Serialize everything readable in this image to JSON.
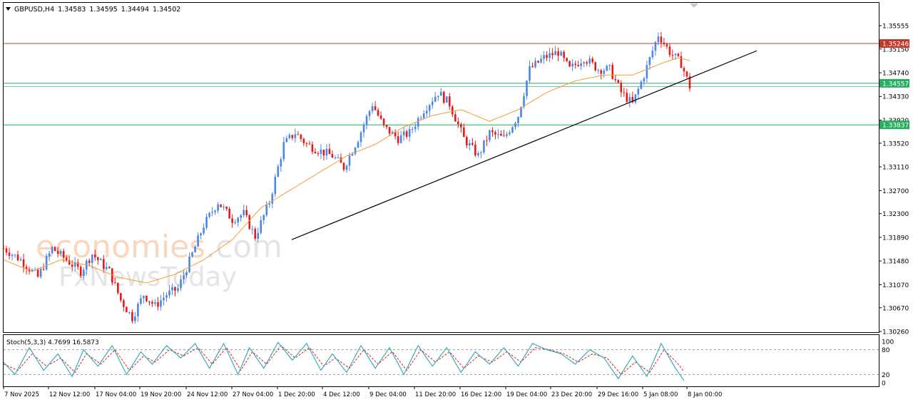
{
  "header": {
    "symbol_timeframe": "GBPUSD,H4",
    "open": "1.34583",
    "high": "1.34595",
    "low": "1.34494",
    "close": "1.34502"
  },
  "watermark": {
    "part1": "economies",
    "part2": ".com",
    "sub": "FxNewsToday"
  },
  "colors": {
    "bull": "#4a86e8",
    "bear": "#e61919",
    "ma": "#f0a030",
    "trendline": "#000000",
    "resistance": "#c0392b",
    "support": "#27ae60",
    "stoch_main": "#2aa7b8",
    "stoch_signal": "#e61919"
  },
  "chart_data": [
    {
      "type": "candlestick",
      "symbol": "GBPUSD",
      "timeframe": "H4",
      "ylim": [
        1.3026,
        1.3555
      ],
      "y_ticks": [
        "1.35555",
        "1.35150",
        "1.34740",
        "1.34330",
        "1.33920",
        "1.33520",
        "1.33110",
        "1.32700",
        "1.32300",
        "1.31890",
        "1.31480",
        "1.31070",
        "1.30670",
        "1.30260"
      ],
      "x_ticks": [
        "7 Nov 2025",
        "12 Nov 12:00",
        "17 Nov 04:00",
        "19 Nov 20:00",
        "24 Nov 12:00",
        "27 Nov 04:00",
        "1 Dec 20:00",
        "4 Dec 12:00",
        "9 Dec 04:00",
        "11 Dec 20:00",
        "16 Dec 12:00",
        "19 Dec 04:00",
        "23 Dec 20:00",
        "29 Dec 16:00",
        "5 Jan 08:00",
        "8 Jan 00:00"
      ],
      "close_path": [
        [
          0,
          1.317
        ],
        [
          6,
          1.315
        ],
        [
          12,
          1.312
        ],
        [
          17,
          1.317
        ],
        [
          22,
          1.315
        ],
        [
          27,
          1.313
        ],
        [
          31,
          1.316
        ],
        [
          37,
          1.313
        ],
        [
          41,
          1.308
        ],
        [
          45,
          1.305
        ],
        [
          49,
          1.309
        ],
        [
          53,
          1.307
        ],
        [
          57,
          1.309
        ],
        [
          61,
          1.31
        ],
        [
          66,
          1.316
        ],
        [
          70,
          1.321
        ],
        [
          75,
          1.325
        ],
        [
          80,
          1.322
        ],
        [
          84,
          1.323
        ],
        [
          88,
          1.319
        ],
        [
          93,
          1.325
        ],
        [
          98,
          1.335
        ],
        [
          102,
          1.337
        ],
        [
          106,
          1.335
        ],
        [
          110,
          1.334
        ],
        [
          115,
          1.333
        ],
        [
          119,
          1.331
        ],
        [
          124,
          1.336
        ],
        [
          129,
          1.342
        ],
        [
          133,
          1.338
        ],
        [
          138,
          1.336
        ],
        [
          142,
          1.337
        ],
        [
          147,
          1.341
        ],
        [
          152,
          1.344
        ],
        [
          156,
          1.342
        ],
        [
          161,
          1.336
        ],
        [
          166,
          1.333
        ],
        [
          170,
          1.337
        ],
        [
          175,
          1.336
        ],
        [
          180,
          1.34
        ],
        [
          184,
          1.348
        ],
        [
          189,
          1.35
        ],
        [
          194,
          1.351
        ],
        [
          198,
          1.348
        ],
        [
          203,
          1.35
        ],
        [
          208,
          1.348
        ],
        [
          212,
          1.348
        ],
        [
          216,
          1.344
        ],
        [
          220,
          1.342
        ],
        [
          224,
          1.347
        ],
        [
          229,
          1.354
        ],
        [
          233,
          1.351
        ],
        [
          237,
          1.349
        ],
        [
          240,
          1.345
        ]
      ],
      "ma_path": [
        [
          0,
          1.315
        ],
        [
          10,
          1.313
        ],
        [
          20,
          1.315
        ],
        [
          30,
          1.314
        ],
        [
          40,
          1.312
        ],
        [
          50,
          1.311
        ],
        [
          60,
          1.3125
        ],
        [
          70,
          1.315
        ],
        [
          80,
          1.3185
        ],
        [
          90,
          1.324
        ],
        [
          100,
          1.327
        ],
        [
          110,
          1.33
        ],
        [
          120,
          1.333
        ],
        [
          130,
          1.335
        ],
        [
          140,
          1.338
        ],
        [
          150,
          1.34
        ],
        [
          160,
          1.341
        ],
        [
          170,
          1.339
        ],
        [
          180,
          1.341
        ],
        [
          190,
          1.344
        ],
        [
          200,
          1.346
        ],
        [
          210,
          1.347
        ],
        [
          220,
          1.347
        ],
        [
          230,
          1.349
        ],
        [
          236,
          1.35
        ],
        [
          240,
          1.3495
        ]
      ],
      "trendline": [
        [
          1.3185,
          1.3512
        ]
      ],
      "horizontal_levels": [
        {
          "price": "1.35246",
          "kind": "resistance"
        },
        {
          "price": "1.34557",
          "kind": "support"
        },
        {
          "price": "1.34502",
          "kind": "current"
        },
        {
          "price": "1.33837",
          "kind": "support"
        }
      ]
    },
    {
      "type": "line",
      "title": "Stoch(5,3,3) 4.7699 16.5873",
      "ylim": [
        0,
        100
      ],
      "y_ticks": [
        "100",
        "80",
        "20",
        "0"
      ],
      "levels": [
        80,
        20
      ],
      "main_path": [
        [
          0,
          50
        ],
        [
          4,
          20
        ],
        [
          9,
          85
        ],
        [
          14,
          30
        ],
        [
          19,
          70
        ],
        [
          24,
          15
        ],
        [
          28,
          80
        ],
        [
          33,
          40
        ],
        [
          38,
          90
        ],
        [
          43,
          20
        ],
        [
          48,
          75
        ],
        [
          52,
          45
        ],
        [
          57,
          90
        ],
        [
          62,
          60
        ],
        [
          67,
          95
        ],
        [
          72,
          35
        ],
        [
          77,
          95
        ],
        [
          82,
          20
        ],
        [
          86,
          85
        ],
        [
          91,
          35
        ],
        [
          96,
          98
        ],
        [
          101,
          55
        ],
        [
          106,
          95
        ],
        [
          111,
          30
        ],
        [
          115,
          70
        ],
        [
          120,
          25
        ],
        [
          125,
          90
        ],
        [
          130,
          35
        ],
        [
          135,
          85
        ],
        [
          140,
          20
        ],
        [
          145,
          90
        ],
        [
          150,
          40
        ],
        [
          155,
          85
        ],
        [
          160,
          25
        ],
        [
          165,
          75
        ],
        [
          170,
          45
        ],
        [
          175,
          85
        ],
        [
          180,
          40
        ],
        [
          185,
          95
        ],
        [
          190,
          80
        ],
        [
          195,
          70
        ],
        [
          200,
          45
        ],
        [
          205,
          80
        ],
        [
          210,
          60
        ],
        [
          215,
          10
        ],
        [
          220,
          65
        ],
        [
          225,
          15
        ],
        [
          230,
          95
        ],
        [
          235,
          35
        ],
        [
          238,
          5
        ]
      ],
      "signal_path": [
        [
          0,
          45
        ],
        [
          5,
          30
        ],
        [
          10,
          70
        ],
        [
          15,
          40
        ],
        [
          20,
          60
        ],
        [
          25,
          25
        ],
        [
          29,
          70
        ],
        [
          34,
          45
        ],
        [
          39,
          80
        ],
        [
          44,
          30
        ],
        [
          49,
          65
        ],
        [
          53,
          50
        ],
        [
          58,
          80
        ],
        [
          63,
          65
        ],
        [
          68,
          85
        ],
        [
          73,
          45
        ],
        [
          78,
          85
        ],
        [
          83,
          30
        ],
        [
          87,
          75
        ],
        [
          92,
          45
        ],
        [
          97,
          90
        ],
        [
          102,
          60
        ],
        [
          107,
          85
        ],
        [
          112,
          40
        ],
        [
          116,
          60
        ],
        [
          121,
          35
        ],
        [
          126,
          80
        ],
        [
          131,
          45
        ],
        [
          136,
          75
        ],
        [
          141,
          30
        ],
        [
          146,
          80
        ],
        [
          151,
          50
        ],
        [
          156,
          75
        ],
        [
          161,
          35
        ],
        [
          166,
          65
        ],
        [
          171,
          50
        ],
        [
          176,
          75
        ],
        [
          181,
          50
        ],
        [
          186,
          85
        ],
        [
          191,
          80
        ],
        [
          196,
          70
        ],
        [
          201,
          50
        ],
        [
          206,
          70
        ],
        [
          211,
          60
        ],
        [
          216,
          20
        ],
        [
          221,
          50
        ],
        [
          226,
          25
        ],
        [
          231,
          80
        ],
        [
          236,
          45
        ],
        [
          239,
          17
        ]
      ]
    }
  ]
}
